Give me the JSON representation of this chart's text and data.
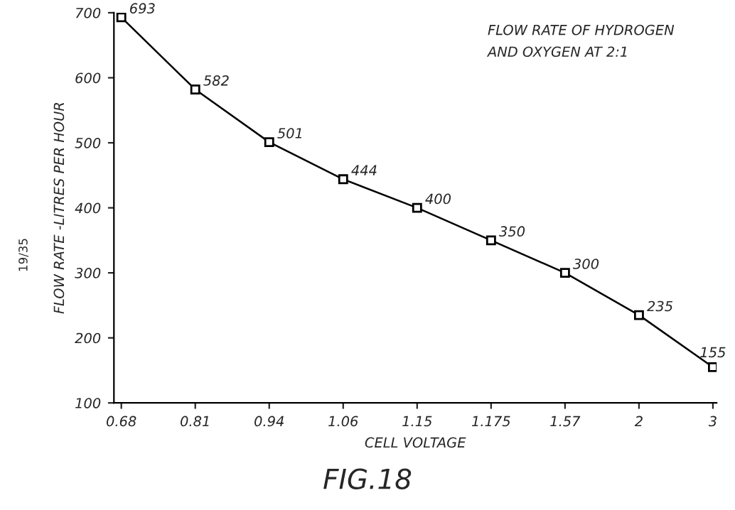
{
  "chart_data": {
    "type": "line",
    "title": "FLOW RATE OF HYDROGEN\nAND OXYGEN AT 2:1",
    "xlabel": "CELL VOLTAGE",
    "ylabel": "FLOW RATE -LITRES PER HOUR",
    "annotations": [
      "19/35",
      "FIG.18"
    ],
    "categories": [
      "0.68",
      "0.81",
      "0.94",
      "1.06",
      "1.15",
      "1.175",
      "1.57",
      "2",
      "3"
    ],
    "series": [
      {
        "color": "#000000",
        "values": [
          693,
          582,
          501,
          444,
          400,
          350,
          300,
          235,
          155
        ]
      }
    ],
    "ylim": [
      100,
      700
    ],
    "yticks": [
      100,
      200,
      300,
      400,
      500,
      600,
      700
    ],
    "data_labels": true,
    "marker": "square",
    "line_style": "solid",
    "grid": false,
    "legend": false
  }
}
